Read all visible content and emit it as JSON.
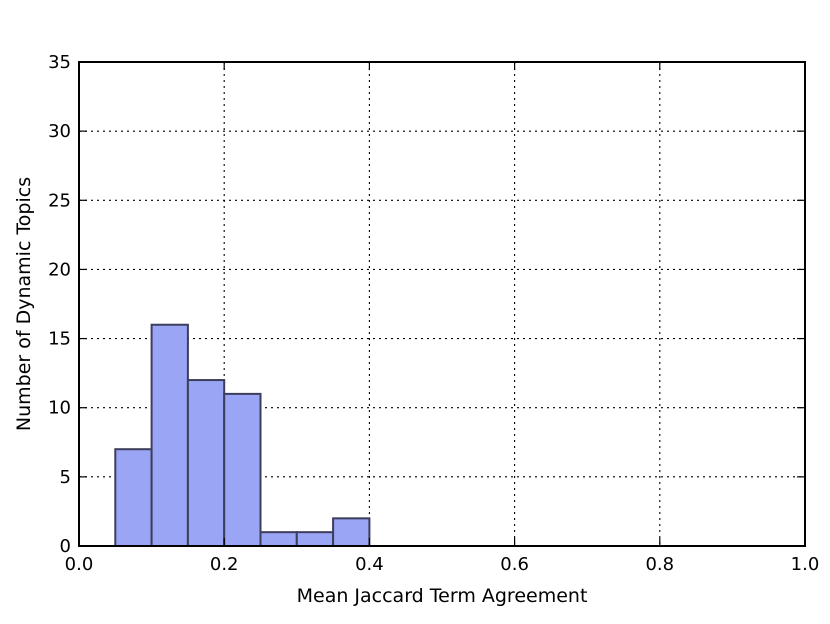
{
  "chart_data": {
    "type": "histogram",
    "title": "",
    "xlabel": "Mean Jaccard Term Agreement",
    "ylabel": "Number of Dynamic Topics",
    "xlim": [
      0.0,
      1.0
    ],
    "ylim": [
      0,
      35
    ],
    "grid": true,
    "xticks": [
      "0.0",
      "0.2",
      "0.4",
      "0.6",
      "0.8",
      "1.0"
    ],
    "yticks": [
      "0",
      "5",
      "10",
      "15",
      "20",
      "25",
      "30",
      "35"
    ],
    "bins": [
      {
        "x0": 0.05,
        "x1": 0.1,
        "count": 7
      },
      {
        "x0": 0.1,
        "x1": 0.15,
        "count": 16
      },
      {
        "x0": 0.15,
        "x1": 0.2,
        "count": 12
      },
      {
        "x0": 0.2,
        "x1": 0.25,
        "count": 11
      },
      {
        "x0": 0.25,
        "x1": 0.3,
        "count": 1
      },
      {
        "x0": 0.3,
        "x1": 0.35,
        "count": 1
      },
      {
        "x0": 0.35,
        "x1": 0.4,
        "count": 2
      }
    ],
    "bar_color": "#9aa5f5",
    "bar_edge_color": "#3d3d5c"
  }
}
